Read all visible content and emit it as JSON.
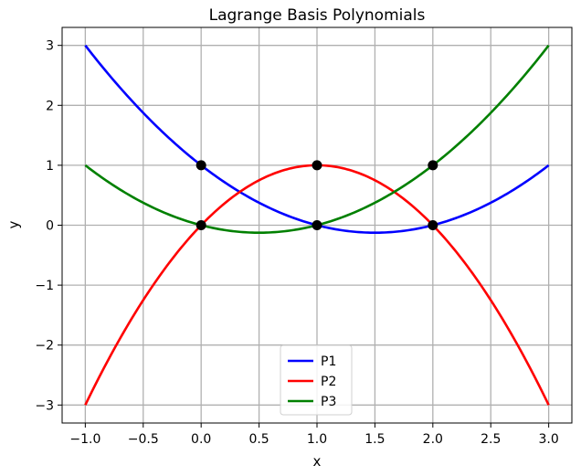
{
  "chart_data": {
    "type": "line",
    "title": "Lagrange Basis Polynomials",
    "xlabel": "x",
    "ylabel": "y",
    "xlim": [
      -1.2,
      3.2
    ],
    "ylim": [
      -3.3,
      3.3
    ],
    "xticks": [
      -1.0,
      -0.5,
      0.0,
      0.5,
      1.0,
      1.5,
      2.0,
      2.5,
      3.0
    ],
    "xtick_labels": [
      "−1.0",
      "−0.5",
      "0.0",
      "0.5",
      "1.0",
      "1.5",
      "2.0",
      "2.5",
      "3.0"
    ],
    "yticks": [
      -3,
      -2,
      -1,
      0,
      1,
      2,
      3
    ],
    "ytick_labels": [
      "−3",
      "−2",
      "−1",
      "0",
      "1",
      "2",
      "3"
    ],
    "grid": true,
    "legend_position": "lower center",
    "series": [
      {
        "name": "P1",
        "color": "#0000ff",
        "x": [
          -1.0,
          -0.5,
          0.0,
          0.5,
          1.0,
          1.5,
          2.0,
          2.5,
          3.0
        ],
        "y": [
          3.0,
          1.875,
          1.0,
          0.375,
          0.0,
          -0.125,
          0.0,
          0.375,
          1.0
        ]
      },
      {
        "name": "P2",
        "color": "#ff0000",
        "x": [
          -1.0,
          -0.5,
          0.0,
          0.5,
          1.0,
          1.5,
          2.0,
          2.5,
          3.0
        ],
        "y": [
          -3.0,
          -1.25,
          0.0,
          0.75,
          1.0,
          0.75,
          0.0,
          -1.25,
          -3.0
        ]
      },
      {
        "name": "P3",
        "color": "#008000",
        "x": [
          -1.0,
          -0.5,
          0.0,
          0.5,
          1.0,
          1.5,
          2.0,
          2.5,
          3.0
        ],
        "y": [
          1.0,
          0.375,
          0.0,
          -0.125,
          0.0,
          0.375,
          1.0,
          1.875,
          3.0
        ]
      }
    ],
    "markers": {
      "color": "#000000",
      "points": [
        {
          "x": 0,
          "y": 1
        },
        {
          "x": 0,
          "y": 0
        },
        {
          "x": 1,
          "y": 1
        },
        {
          "x": 1,
          "y": 0
        },
        {
          "x": 2,
          "y": 1
        },
        {
          "x": 2,
          "y": 0
        }
      ]
    }
  }
}
